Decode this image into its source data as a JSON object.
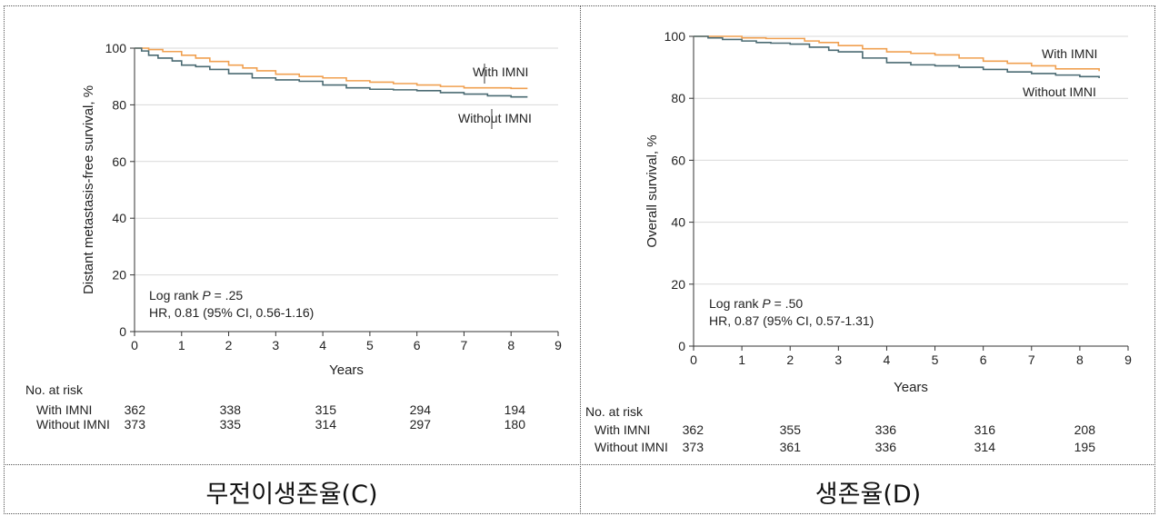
{
  "chart_data": [
    {
      "type": "line",
      "panel_caption": "무전이생존율(C)",
      "xlabel": "Years",
      "ylabel": "Distant metastasis-free survival, %",
      "xlim": [
        0,
        9
      ],
      "ylim": [
        0,
        100
      ],
      "xticks": [
        "0",
        "1",
        "2",
        "3",
        "4",
        "5",
        "6",
        "7",
        "8",
        "9"
      ],
      "yticks": [
        "0",
        "20",
        "40",
        "60",
        "80",
        "100"
      ],
      "grid": "horizontal",
      "annotation_line1_prefix": "Log rank ",
      "annotation_line1_p": "P",
      "annotation_line1_suffix": " = .25",
      "annotation_line2": "HR, 0.81 (95% CI, 0.56-1.16)",
      "series": [
        {
          "name": "With IMNI",
          "color": "#f0a050",
          "x": [
            0,
            0.3,
            0.6,
            1.0,
            1.3,
            1.6,
            2.0,
            2.3,
            2.6,
            3.0,
            3.5,
            4.0,
            4.5,
            5.0,
            5.5,
            6.0,
            6.5,
            7.0,
            7.5,
            8.0,
            8.35
          ],
          "y": [
            100,
            99.5,
            98.8,
            97.5,
            96.5,
            95.3,
            94,
            93,
            92,
            90.8,
            90,
            89.5,
            88.5,
            88,
            87.5,
            87,
            86.5,
            86,
            86,
            85.8,
            85.8
          ]
        },
        {
          "name": "Without IMNI",
          "color": "#4a6a72",
          "x": [
            0,
            0.15,
            0.3,
            0.5,
            0.8,
            1.0,
            1.3,
            1.6,
            2.0,
            2.5,
            3.0,
            3.5,
            4.0,
            4.5,
            5.0,
            5.5,
            6.0,
            6.5,
            7.0,
            7.5,
            8.0,
            8.35
          ],
          "y": [
            100,
            99,
            97.5,
            96.5,
            95.5,
            94,
            93.5,
            92.5,
            91,
            89.5,
            88.8,
            88.3,
            87,
            86,
            85.5,
            85.3,
            85,
            84.3,
            83.8,
            83.2,
            82.8,
            82.8
          ]
        }
      ],
      "risk_table": {
        "title": "No. at risk",
        "rows": [
          {
            "label": "With IMNI",
            "values": [
              "362",
              "338",
              "315",
              "294",
              "194"
            ]
          },
          {
            "label": "Without IMNI",
            "values": [
              "373",
              "335",
              "314",
              "297",
              "180"
            ]
          }
        ]
      }
    },
    {
      "type": "line",
      "panel_caption": "생존율(D)",
      "xlabel": "Years",
      "ylabel": "Overall survival, %",
      "xlim": [
        0,
        9
      ],
      "ylim": [
        0,
        100
      ],
      "xticks": [
        "0",
        "1",
        "2",
        "3",
        "4",
        "5",
        "6",
        "7",
        "8",
        "9"
      ],
      "yticks": [
        "0",
        "20",
        "40",
        "60",
        "80",
        "100"
      ],
      "grid": "horizontal",
      "annotation_line1_prefix": "Log rank ",
      "annotation_line1_p": "P",
      "annotation_line1_suffix": " = .50",
      "annotation_line2": "HR, 0.87 (95% CI, 0.57-1.31)",
      "series": [
        {
          "name": "With IMNI",
          "color": "#f0a050",
          "x": [
            0,
            0.5,
            1.0,
            1.5,
            2.0,
            2.3,
            2.6,
            3.0,
            3.5,
            4.0,
            4.5,
            5.0,
            5.5,
            6.0,
            6.5,
            7.0,
            7.5,
            8.0,
            8.4
          ],
          "y": [
            100,
            100,
            99.5,
            99.3,
            99.3,
            98.5,
            98,
            97,
            96,
            95,
            94.5,
            94,
            93,
            92,
            91.3,
            90.5,
            89.5,
            89.5,
            88.8
          ]
        },
        {
          "name": "Without IMNI",
          "color": "#4a6a72",
          "x": [
            0,
            0.3,
            0.6,
            1.0,
            1.3,
            1.6,
            2.0,
            2.4,
            2.8,
            3.0,
            3.5,
            4.0,
            4.5,
            5.0,
            5.5,
            6.0,
            6.5,
            7.0,
            7.5,
            8.0,
            8.4
          ],
          "y": [
            100,
            99.5,
            99,
            98.5,
            98,
            97.8,
            97.5,
            96.5,
            95.5,
            95,
            93,
            91.5,
            90.8,
            90.5,
            90,
            89.3,
            88.5,
            88,
            87.5,
            87,
            86.5
          ]
        }
      ],
      "risk_table": {
        "title": "No. at risk",
        "rows": [
          {
            "label": "With IMNI",
            "values": [
              "362",
              "355",
              "336",
              "316",
              "208"
            ]
          },
          {
            "label": "Without IMNI",
            "values": [
              "373",
              "361",
              "336",
              "314",
              "195"
            ]
          }
        ]
      }
    }
  ]
}
